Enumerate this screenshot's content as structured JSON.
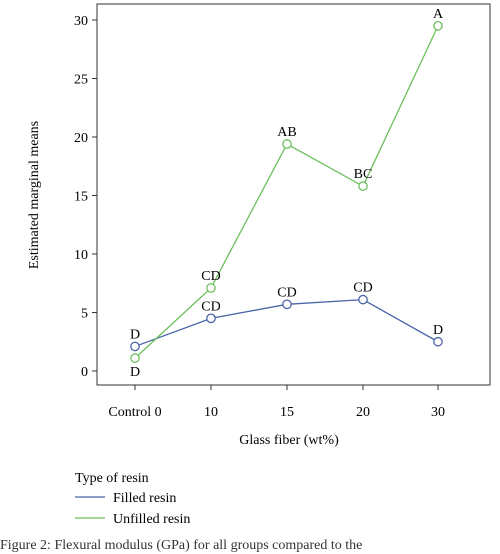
{
  "chart_data": {
    "type": "line",
    "categories": [
      "Control 0",
      "10",
      "15",
      "20",
      "30"
    ],
    "xlabel": "Glass fiber (wt%)",
    "ylabel": "Estimated marginal means",
    "ylim": [
      0,
      30
    ],
    "yticks": [
      0,
      5,
      10,
      15,
      20,
      25,
      30
    ],
    "grid": false,
    "legend_title": "Type of resin",
    "legend_placement": "bottom-left",
    "series": [
      {
        "name": "Filled resin",
        "color": "#4a64a8",
        "values": [
          2.1,
          4.5,
          5.7,
          6.1,
          2.5
        ],
        "labels": [
          "D",
          "CD",
          "CD",
          "CD",
          "D"
        ],
        "label_position": [
          "above",
          "above",
          "above",
          "above",
          "above"
        ]
      },
      {
        "name": "Unfilled resin",
        "color": "#6cc05c",
        "values": [
          1.1,
          7.1,
          19.4,
          15.8,
          29.5
        ],
        "labels": [
          "D",
          "CD",
          "AB",
          "BC",
          "A"
        ],
        "label_position": [
          "below",
          "above",
          "above",
          "above",
          "above"
        ]
      }
    ]
  },
  "caption": "Figure 2: Flexural modulus (GPa) for all groups compared to the"
}
